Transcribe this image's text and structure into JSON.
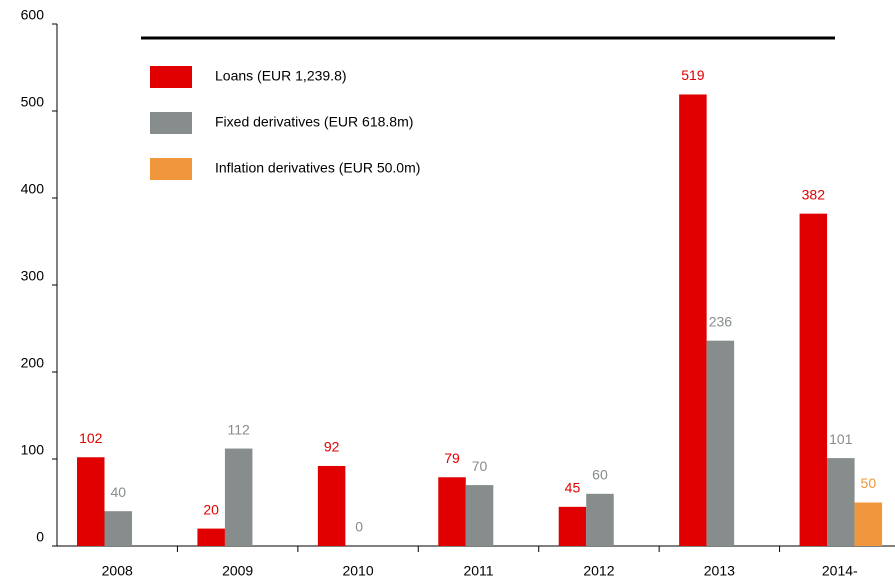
{
  "chart_data": {
    "type": "bar",
    "categories": [
      "2008",
      "2009",
      "2010",
      "2011",
      "2012",
      "2013",
      "2014-"
    ],
    "series": [
      {
        "name": "Loans (EUR 1,239.8)",
        "color": "#e00000",
        "values": [
          102,
          20,
          92,
          79,
          45,
          519,
          382
        ]
      },
      {
        "name": "Fixed derivatives (EUR 618.8m)",
        "color": "#878c8c",
        "values": [
          40,
          112,
          0,
          70,
          60,
          236,
          101
        ]
      },
      {
        "name": "Inflation derivatives (EUR 50.0m)",
        "color": "#f0963c",
        "values": [
          null,
          null,
          null,
          null,
          null,
          null,
          50
        ]
      }
    ],
    "ylim": [
      0,
      600
    ],
    "yticks": [
      0,
      100,
      200,
      300,
      400,
      500,
      600
    ],
    "legend": "upper left"
  }
}
